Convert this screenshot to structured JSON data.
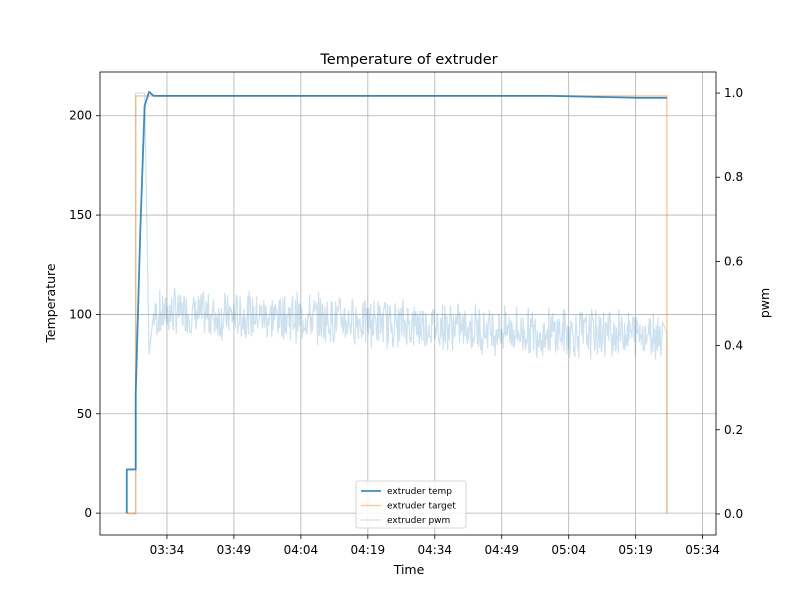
{
  "chart_data": {
    "type": "line",
    "title": "Temperature of extruder",
    "xlabel": "Time",
    "ylabel": "Temperature",
    "y2label": "pwm",
    "x_ticks": [
      "03:34",
      "03:49",
      "04:04",
      "04:19",
      "04:34",
      "04:49",
      "05:04",
      "05:19",
      "05:34"
    ],
    "xlim": [
      "03:19",
      "05:37"
    ],
    "ylim": [
      -11,
      222
    ],
    "y_ticks": [
      0,
      50,
      100,
      150,
      200
    ],
    "y2lim": [
      -0.05,
      1.05
    ],
    "y2_ticks": [
      "0.0",
      "0.2",
      "0.4",
      "0.6",
      "0.8",
      "1.0"
    ],
    "grid": true,
    "legend_position": "lower-center",
    "series": [
      {
        "name": "extruder temp",
        "axis": "left",
        "color": "#1f77b4",
        "x": [
          "03:25",
          "03:25",
          "03:27",
          "03:27",
          "03:28",
          "03:29",
          "03:30",
          "03:31",
          "03:40",
          "04:00",
          "04:20",
          "04:40",
          "05:00",
          "05:20",
          "05:26"
        ],
        "y": [
          0,
          22,
          22,
          60,
          140,
          205,
          212,
          210,
          210,
          210,
          210,
          210,
          210,
          209,
          209
        ]
      },
      {
        "name": "extruder target",
        "axis": "left",
        "color": "#ff7f0e",
        "x": [
          "03:25",
          "03:27",
          "03:27",
          "05:26",
          "05:26"
        ],
        "y": [
          0,
          0,
          210,
          210,
          0
        ]
      },
      {
        "name": "extruder pwm",
        "axis": "right",
        "color": "#1f77b4",
        "x": [
          "03:25",
          "03:27",
          "03:27",
          "03:29",
          "03:30",
          "03:31",
          "03:35",
          "03:45",
          "04:00",
          "04:15",
          "04:30",
          "04:45",
          "05:00",
          "05:15",
          "05:25",
          "05:26",
          "05:26"
        ],
        "y": [
          0.0,
          0.0,
          1.0,
          1.0,
          0.38,
          0.47,
          0.48,
          0.47,
          0.47,
          0.46,
          0.45,
          0.44,
          0.43,
          0.43,
          0.43,
          0.43,
          0.0
        ]
      }
    ]
  }
}
